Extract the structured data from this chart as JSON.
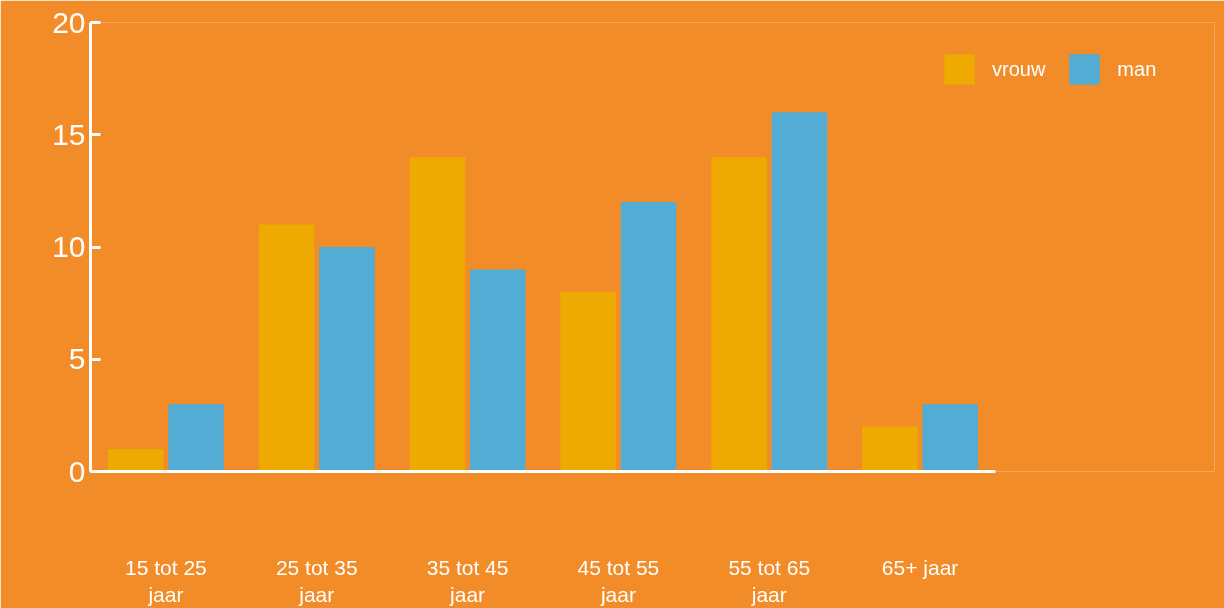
{
  "chart_data": {
    "type": "bar",
    "categories": [
      "15 tot 25\njaar",
      "25 tot 35\njaar",
      "35 tot 45\njaar",
      "45 tot 55\njaar",
      "55 tot 65\njaar",
      "65+ jaar"
    ],
    "series": [
      {
        "name": "vrouw",
        "color": "#eeaa00",
        "values": [
          1,
          11,
          14,
          8,
          14,
          2
        ]
      },
      {
        "name": "man",
        "color": "#52acd3",
        "values": [
          3,
          10,
          9,
          12,
          16,
          3
        ]
      }
    ],
    "ylim": [
      0,
      20
    ],
    "yticks": [
      0,
      5,
      10,
      15,
      20
    ],
    "legend": "top right"
  }
}
